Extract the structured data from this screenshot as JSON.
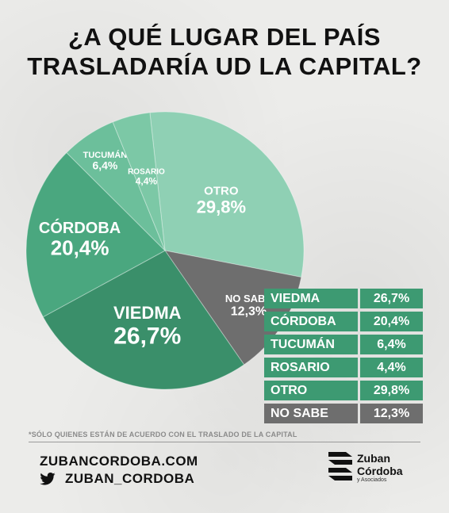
{
  "title": {
    "line1": "¿A QUÉ LUGAR DEL PAÍS",
    "line2": "TRASLADARÍA UD LA CAPITAL?"
  },
  "chart_data": {
    "type": "pie",
    "slices": [
      {
        "label": "OTRO",
        "value_text": "29,8%",
        "value": 29.8,
        "color": "#8fd0b4"
      },
      {
        "label": "NO SABE",
        "value_text": "12,3%",
        "value": 12.3,
        "color": "#6e6e6e"
      },
      {
        "label": "VIEDMA",
        "value_text": "26,7%",
        "value": 26.7,
        "color": "#3a8f6a"
      },
      {
        "label": "CÓRDOBA",
        "value_text": "20,4%",
        "value": 20.4,
        "color": "#4aa77f"
      },
      {
        "label": "TUCUMÁN",
        "value_text": "6,4%",
        "value": 6.4,
        "color": "#6cbf9b"
      },
      {
        "label": "ROSARIO",
        "value_text": "4,4%",
        "value": 4.4,
        "color": "#7cc8a6"
      }
    ]
  },
  "table": [
    {
      "name": "VIEDMA",
      "value": "26,7%",
      "style": "green"
    },
    {
      "name": "CÓRDOBA",
      "value": "20,4%",
      "style": "green"
    },
    {
      "name": "TUCUMÁN",
      "value": "6,4%",
      "style": "green"
    },
    {
      "name": "ROSARIO",
      "value": "4,4%",
      "style": "green"
    },
    {
      "name": "OTRO",
      "value": "29,8%",
      "style": "green"
    },
    {
      "name": "NO SABE",
      "value": "12,3%",
      "style": "gray"
    }
  ],
  "footnote": "*SÓLO QUIENES ESTÁN DE ACUERDO CON EL TRASLADO DE LA CAPITAL",
  "footer": {
    "website": "ZUBANCORDOBA.COM",
    "twitter": "ZUBAN_CORDOBA",
    "twitter_icon": "twitter-bird-icon",
    "logo_line1": "Zuban",
    "logo_line2": "Córdoba",
    "logo_line3": "y Asociados"
  }
}
